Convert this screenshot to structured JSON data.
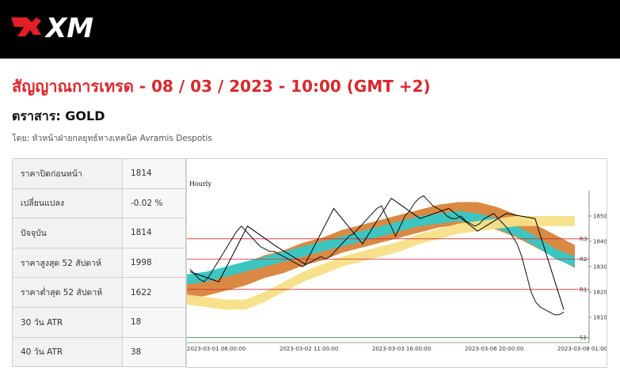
{
  "header": {
    "brand": "XM"
  },
  "title": "สัญญาณการเทรด - 08 / 03 / 2023 - 10:00 (GMT +2)",
  "instrument": "ตราสาร: GOLD",
  "byline": "โดย: หัวหน้าฝ่ายกลยุทธ์ทางเทคนิค Avramis Despotis",
  "stats": [
    {
      "label": "ราคาปิดก่อนหน้า",
      "value": "1814"
    },
    {
      "label": "เปลี่ยนแปลง",
      "value": "-0.02 %"
    },
    {
      "label": "ปัจจุบัน",
      "value": "1814"
    },
    {
      "label": "ราคาสูงสุด 52 สัปดาห์",
      "value": "1998"
    },
    {
      "label": "ราคาต่ำสุด 52 สัปดาห์",
      "value": "1622"
    },
    {
      "label": "30 วัน ATR",
      "value": "18"
    },
    {
      "label": "40 วัน ATR",
      "value": "38"
    }
  ],
  "chart_data": {
    "type": "line",
    "title": "Hourly",
    "x_labels": [
      "2023-03-01 06:00:00",
      "2023-03-02 11:00:00",
      "2023-03-03 16:00:00",
      "2023-03-06 20:00:00",
      "2023-03-08 01:00:00"
    ],
    "y_ticks": [
      1810,
      1820,
      1830,
      1840,
      1850
    ],
    "ylim": [
      1800,
      1860
    ],
    "levels": [
      {
        "name": "R3",
        "value": 1841
      },
      {
        "name": "R2",
        "value": 1833
      },
      {
        "name": "R1",
        "value": 1821
      },
      {
        "name": "S1",
        "value": 1802
      }
    ],
    "price": [
      1829,
      1827,
      1825,
      1824,
      1826,
      1829,
      1832,
      1835,
      1838,
      1841,
      1844,
      1846,
      1844,
      1842,
      1840,
      1838,
      1837,
      1836,
      1836,
      1835,
      1834,
      1833,
      1832,
      1831,
      1830,
      1831,
      1832,
      1833,
      1834,
      1833,
      1834,
      1836,
      1838,
      1840,
      1842,
      1843,
      1845,
      1847,
      1849,
      1851,
      1853,
      1854,
      1850,
      1846,
      1842,
      1846,
      1850,
      1852,
      1855,
      1857,
      1858,
      1856,
      1854,
      1853,
      1852,
      1850,
      1849,
      1849,
      1850,
      1848,
      1847,
      1846,
      1847,
      1849,
      1850,
      1851,
      1849,
      1847,
      1845,
      1842,
      1839,
      1834,
      1827,
      1820,
      1816,
      1814,
      1813,
      1812,
      1811,
      1811,
      1812
    ],
    "zigzag": [
      1828,
      1824,
      1846,
      1838,
      1831,
      1853,
      1839,
      1857,
      1849,
      1853,
      1844,
      1851,
      1849,
      1813
    ],
    "ribbon_cyan": {
      "mid": [
        1825,
        1826,
        1828,
        1830,
        1832,
        1834,
        1836,
        1838,
        1840,
        1842,
        1844,
        1846,
        1848,
        1849,
        1850,
        1849,
        1847,
        1844,
        1840,
        1835,
        1832
      ],
      "width": 4
    },
    "ribbon_orange": {
      "mid": [
        1822,
        1823,
        1825,
        1827,
        1830,
        1832,
        1835,
        1837,
        1840,
        1842,
        1844,
        1846,
        1848,
        1850,
        1851,
        1851,
        1849,
        1846,
        1842,
        1838,
        1834
      ],
      "width": 9
    },
    "ribbon_yellow": {
      "mid": [
        1817,
        1816,
        1815,
        1815,
        1818,
        1822,
        1826,
        1829,
        1832,
        1834,
        1836,
        1838,
        1841,
        1843,
        1845,
        1846,
        1847,
        1848,
        1848,
        1848,
        1848
      ],
      "width": 4
    },
    "grid": false,
    "legend": "none"
  }
}
